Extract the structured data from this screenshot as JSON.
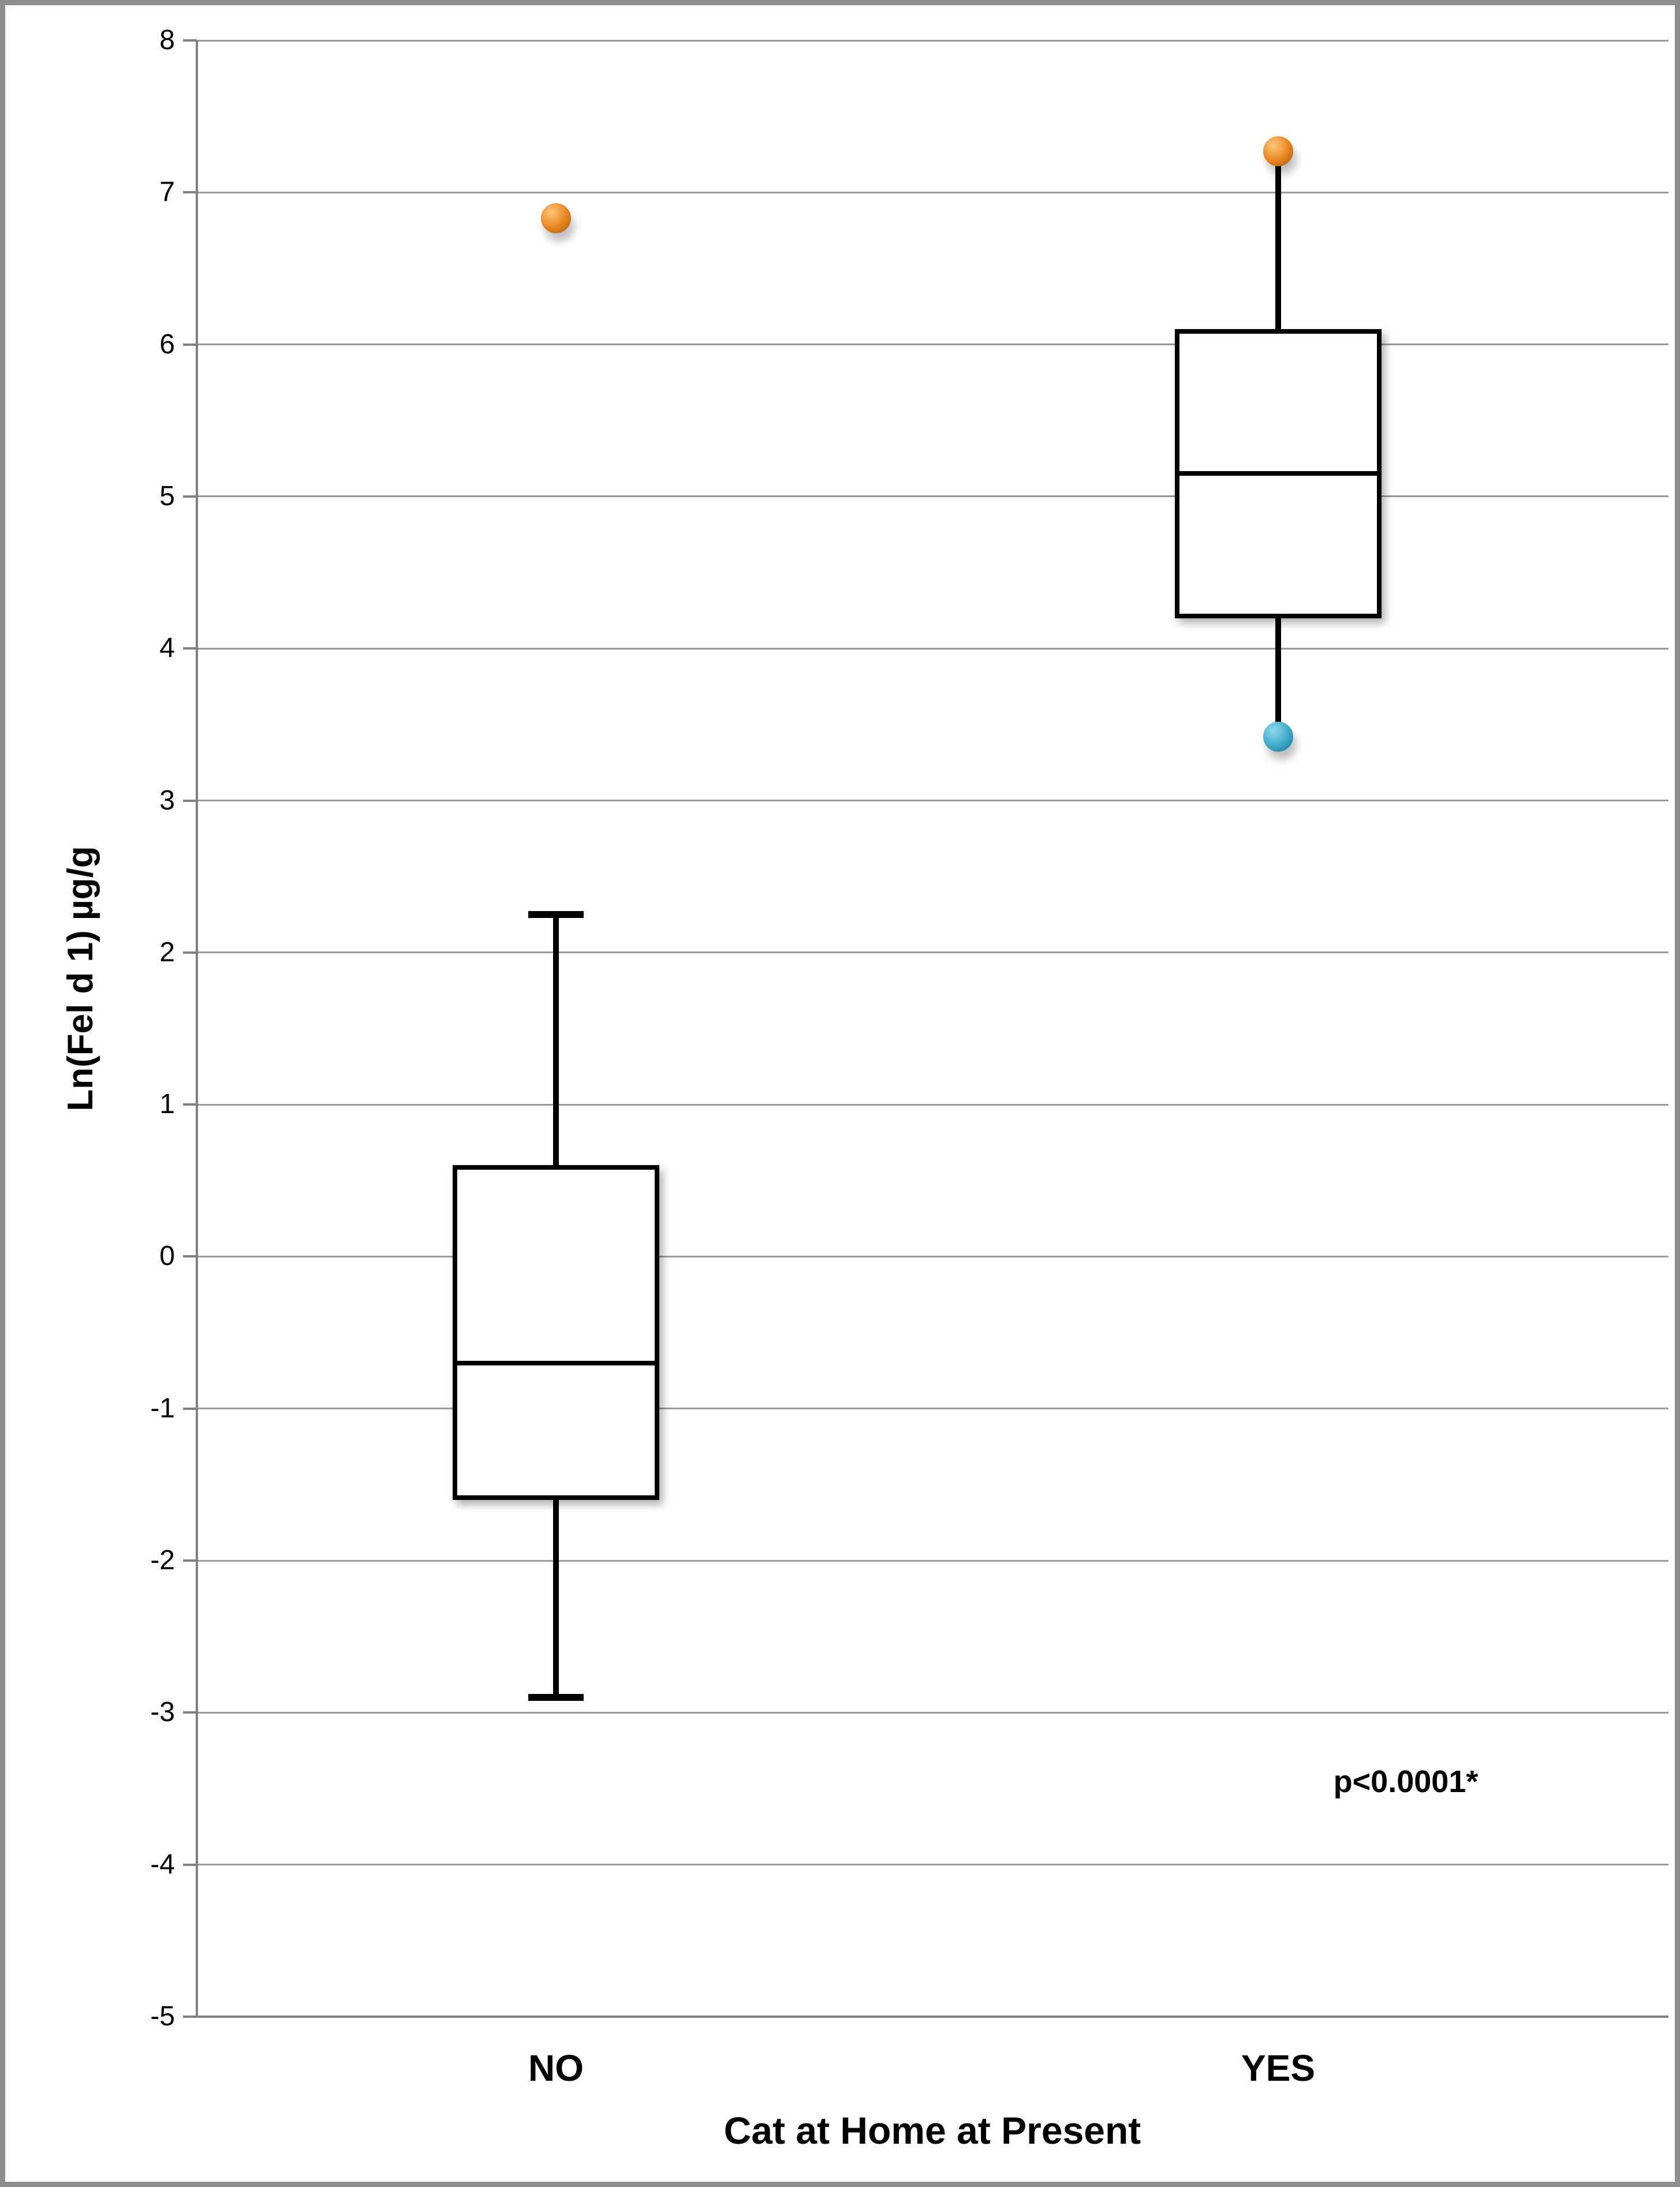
{
  "y_axis": {
    "title": "Ln(Fel d 1) µg/g",
    "ticks": [
      "8",
      "7",
      "6",
      "5",
      "4",
      "3",
      "2",
      "1",
      "0",
      "-1",
      "-2",
      "-3",
      "-4",
      "-5"
    ]
  },
  "x_axis": {
    "title": "Cat at Home at Present",
    "categories": [
      "NO",
      "YES"
    ]
  },
  "annotation": {
    "text": "p<0.0001*"
  },
  "colors": {
    "grid": "#9b9b9b",
    "axis": "#808080",
    "frame": "#8d8d8d",
    "box_stroke": "#000000",
    "box_fill": "#ffffff",
    "marker_orange": {
      "base": "#E8821E",
      "light": "#FFC87A",
      "dark": "#9C5A10"
    },
    "marker_blue": {
      "base": "#3AA8C9",
      "light": "#8FD9EC",
      "dark": "#1E6E88"
    }
  },
  "chart_data": {
    "type": "box",
    "title": "",
    "xlabel": "Cat at Home at Present",
    "ylabel": "Ln(Fel d 1) µg/g",
    "ylim": [
      -5,
      8
    ],
    "ytick_step": 1,
    "grid": true,
    "legend": "none",
    "categories": [
      "NO",
      "YES"
    ],
    "series": [
      {
        "category": "NO",
        "whisker_low": -2.9,
        "q1": -1.6,
        "median": -0.7,
        "q3": 0.6,
        "whisker_high": 2.25,
        "cap_low": true,
        "cap_high": true,
        "marker_low": null,
        "marker_high": null,
        "outliers": [
          {
            "value": 6.83,
            "color": "orange"
          }
        ]
      },
      {
        "category": "YES",
        "whisker_low": 3.42,
        "q1": 4.2,
        "median": 5.15,
        "q3": 6.1,
        "whisker_high": 7.27,
        "cap_low": false,
        "cap_high": false,
        "marker_low": "blue",
        "marker_high": "orange",
        "outliers": []
      }
    ],
    "annotation": {
      "text": "p<0.0001*",
      "y_value": -3.5,
      "near_category": "YES"
    }
  }
}
